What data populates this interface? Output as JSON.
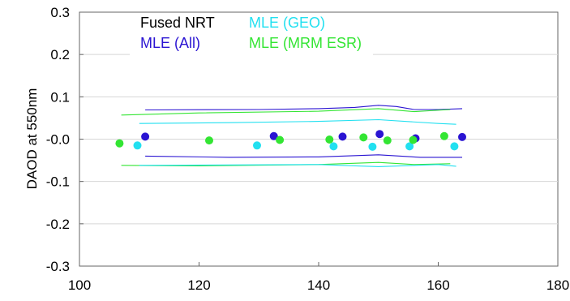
{
  "chart_data": {
    "type": "scatter",
    "title": "",
    "xlabel": "",
    "ylabel": "DAOD at 550nm",
    "xlim": [
      100,
      180
    ],
    "ylim": [
      -0.3,
      0.3
    ],
    "x_ticks": [
      100,
      120,
      140,
      160,
      180
    ],
    "x_tick_labels": [
      "100",
      "120",
      "140",
      "160",
      "180"
    ],
    "y_ticks": [
      0.3,
      0.2,
      0.1,
      0.0,
      -0.1,
      -0.2,
      -0.3
    ],
    "y_tick_labels": [
      "0.3",
      "0.2",
      "0.1",
      "-0.0",
      "-0.1",
      "-0.2",
      "-0.3"
    ],
    "grid": "horizontal",
    "legend": {
      "placement": "top",
      "entries": [
        {
          "label": "Fused NRT",
          "color": "#000000"
        },
        {
          "label": "MLE (All)",
          "color": "#2a14d2"
        },
        {
          "label": "MLE (GEO)",
          "color": "#22e0f0"
        },
        {
          "label": "MLE (MRM ESR)",
          "color": "#33e533"
        }
      ]
    },
    "series": [
      {
        "name": "MLE (All)",
        "color": "#2a14d2",
        "points": [
          [
            111,
            0.006
          ],
          [
            132.5,
            0.007
          ],
          [
            144,
            0.006
          ],
          [
            150.2,
            0.012
          ],
          [
            156.2,
            0.002
          ],
          [
            164,
            0.005
          ]
        ]
      },
      {
        "name": "MLE (GEO)",
        "color": "#22e0f0",
        "points": [
          [
            109.7,
            -0.015
          ],
          [
            129.7,
            -0.015
          ],
          [
            142.5,
            -0.017
          ],
          [
            149,
            -0.018
          ],
          [
            155.2,
            -0.017
          ],
          [
            162.7,
            -0.017
          ]
        ]
      },
      {
        "name": "MLE (MRM ESR)",
        "color": "#33e533",
        "points": [
          [
            106.7,
            -0.01
          ],
          [
            121.7,
            -0.003
          ],
          [
            133.5,
            -0.002
          ],
          [
            141.8,
            -0.001
          ],
          [
            147.5,
            0.004
          ],
          [
            151.5,
            -0.003
          ],
          [
            155.8,
            -0.002
          ],
          [
            161,
            0.007
          ]
        ]
      }
    ],
    "bands": [
      {
        "color": "#2a14d2",
        "points": [
          [
            111,
            0.069
          ],
          [
            130,
            0.07
          ],
          [
            140,
            0.072
          ],
          [
            146,
            0.075
          ],
          [
            150,
            0.08
          ],
          [
            153,
            0.077
          ],
          [
            156,
            0.07
          ],
          [
            160,
            0.07
          ],
          [
            164,
            0.072
          ]
        ]
      },
      {
        "color": "#33e533",
        "points": [
          [
            107,
            0.057
          ],
          [
            120,
            0.062
          ],
          [
            140,
            0.066
          ],
          [
            150,
            0.072
          ],
          [
            156,
            0.065
          ],
          [
            162,
            0.07
          ]
        ]
      },
      {
        "color": "#22e0f0",
        "points": [
          [
            110,
            0.037
          ],
          [
            125,
            0.039
          ],
          [
            140,
            0.042
          ],
          [
            150,
            0.046
          ],
          [
            160,
            0.037
          ],
          [
            163,
            0.035
          ]
        ]
      },
      {
        "color": "#2a14d2",
        "points": [
          [
            111,
            -0.04
          ],
          [
            125,
            -0.043
          ],
          [
            140,
            -0.042
          ],
          [
            150,
            -0.037
          ],
          [
            157,
            -0.043
          ],
          [
            164,
            -0.043
          ]
        ]
      },
      {
        "color": "#33e533",
        "points": [
          [
            107,
            -0.062
          ],
          [
            120,
            -0.063
          ],
          [
            140,
            -0.06
          ],
          [
            150,
            -0.055
          ],
          [
            156,
            -0.06
          ],
          [
            162,
            -0.058
          ]
        ]
      },
      {
        "color": "#22e0f0",
        "points": [
          [
            110,
            -0.062
          ],
          [
            125,
            -0.061
          ],
          [
            140,
            -0.06
          ],
          [
            150,
            -0.065
          ],
          [
            160,
            -0.06
          ],
          [
            163,
            -0.064
          ]
        ]
      }
    ]
  }
}
